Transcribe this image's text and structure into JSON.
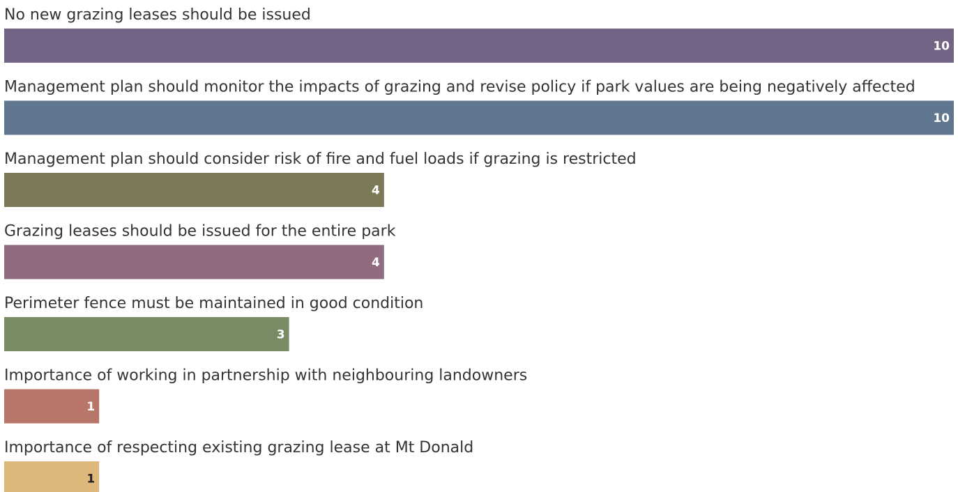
{
  "chart_data": {
    "type": "bar",
    "orientation": "horizontal",
    "categories": [
      "No new grazing leases should be issued",
      "Management plan should monitor the impacts of grazing and revise policy if park values are being negatively affected",
      "Management plan should consider risk of fire and fuel loads if grazing is restricted",
      "Grazing leases should be issued for the entire park",
      "Perimeter fence must be maintained in good condition",
      "Importance of working in partnership with neighbouring landowners",
      "Importance of respecting existing grazing lease at Mt Donald"
    ],
    "values": [
      10,
      10,
      4,
      4,
      3,
      1,
      1
    ],
    "colors": [
      "#736384",
      "#61778f",
      "#7c7957",
      "#916b80",
      "#778b65",
      "#b87569",
      "#ddb87a"
    ],
    "xlim": [
      0,
      10
    ]
  }
}
